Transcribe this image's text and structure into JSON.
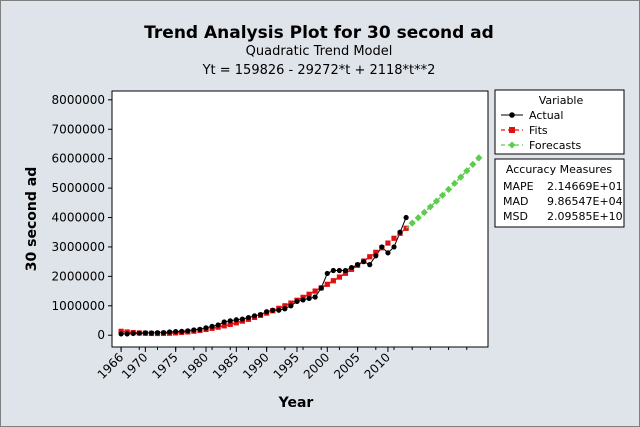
{
  "chart_data": {
    "type": "line",
    "title": "Trend Analysis Plot for 30 second ad",
    "subtitle": "Quadratic Trend Model",
    "equation": "Yt = 159826 - 29272*t + 2118*t**2",
    "xlabel": "Year",
    "ylabel": "30 second ad",
    "x_ticks": [
      "1966",
      "1970",
      "1975",
      "1980",
      "1985",
      "1990",
      "1995",
      "2000",
      "2005",
      "2010"
    ],
    "y_ticks": [
      "0",
      "1000000",
      "2000000",
      "3000000",
      "4000000",
      "5000000",
      "6000000",
      "7000000",
      "8000000"
    ],
    "xlim": [
      1964.5,
      2026.5
    ],
    "ylim": [
      -400000,
      8300000
    ],
    "model": {
      "a": 159826,
      "b": -29272,
      "c": 2118,
      "t0_year": 1966
    },
    "actual": {
      "name": "Actual",
      "color": "#000000",
      "x": [
        1966,
        1967,
        1968,
        1969,
        1970,
        1971,
        1972,
        1973,
        1974,
        1975,
        1976,
        1977,
        1978,
        1979,
        1980,
        1981,
        1982,
        1983,
        1984,
        1985,
        1986,
        1987,
        1988,
        1989,
        1990,
        1991,
        1992,
        1993,
        1994,
        1995,
        1996,
        1997,
        1998,
        1999,
        2000,
        2001,
        2002,
        2003,
        2004,
        2005,
        2006,
        2007,
        2008,
        2009,
        2010,
        2011,
        2012,
        2013
      ],
      "values": [
        45000,
        45000,
        60000,
        70000,
        80000,
        75000,
        85000,
        90000,
        110000,
        125000,
        130000,
        150000,
        180000,
        200000,
        250000,
        300000,
        350000,
        450000,
        490000,
        525000,
        550000,
        600000,
        660000,
        700000,
        800000,
        850000,
        850000,
        900000,
        1000000,
        1150000,
        1200000,
        1250000,
        1300000,
        1600000,
        2100000,
        2200000,
        2200000,
        2200000,
        2300000,
        2400000,
        2500000,
        2400000,
        2700000,
        3000000,
        2800000,
        3000000,
        3500000,
        4000000
      ]
    },
    "fits": {
      "name": "Fits",
      "color": "#e01010"
    },
    "forecasts": {
      "name": "Forecasts",
      "color": "#5dcc4f",
      "x_start": 2014,
      "x_end": 2025
    },
    "legend": {
      "title": "Variable",
      "placement": "right"
    },
    "accuracy": {
      "title": "Accuracy Measures",
      "rows": [
        {
          "label": "MAPE",
          "value": "2.14669E+01"
        },
        {
          "label": "MAD",
          "value": "9.86547E+04"
        },
        {
          "label": "MSD",
          "value": "2.09585E+10"
        }
      ]
    }
  }
}
